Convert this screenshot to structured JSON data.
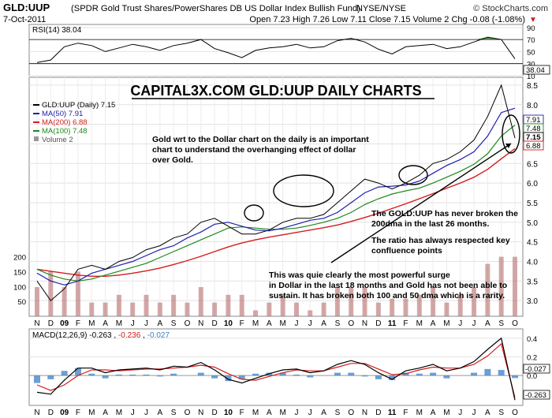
{
  "header": {
    "symbol": "GLD:UUP",
    "description": "(SPDR Gold Trust Shares/PowerShares DB US Dollar Index Bullish Fund)",
    "exchange": "NYSE/NYSE",
    "credit": "© StockCharts.com",
    "date": "7-Oct-2011",
    "quote": "Open 7.23  High 7.26  Low 7.11  Close 7.15  Volume 2  Chg -0.08 (-1.08%)",
    "chg_arrow": "▼"
  },
  "rsi_panel": {
    "label": "RSI(14) 38.04",
    "ticks": [
      "90",
      "70",
      "50",
      "30",
      "10"
    ],
    "last_value_label": "38.04"
  },
  "main_panel": {
    "title": "CAPITAL3X.COM GLD:UUP DAILY CHARTS",
    "legend": [
      {
        "text": "GLD:UUP (Daily) 7.15",
        "color": "#000000"
      },
      {
        "text": "MA(50) 7.91",
        "color": "#1f1fb0"
      },
      {
        "text": "MA(200) 6.88",
        "color": "#d41c1c"
      },
      {
        "text": "MA(100) 7.48",
        "color": "#1c8a1c"
      },
      {
        "text": "Volume 2",
        "color": "#555555"
      }
    ],
    "y_ticks": [
      "8.5",
      "8.0",
      "7.5",
      "7.0",
      "6.5",
      "6.0",
      "5.5",
      "5.0",
      "4.5",
      "4.0",
      "3.5",
      "3.0"
    ],
    "volume_ticks": [
      "200",
      "150",
      "100",
      "50"
    ],
    "last_labels": [
      "7.91",
      "7.48",
      "7.15",
      "6.88"
    ],
    "annotation_1": [
      "Gold wrt to the Dollar chart on the daily is an important",
      "chart to understand the overhanging effect of dollar",
      "over Gold."
    ],
    "annotation_2": [
      "The GOLD:UUP has never broken the",
      "200dma in the last 26 months."
    ],
    "annotation_3": [
      "The ratio has always respected key",
      "confluence points"
    ],
    "annotation_4": [
      "This was quie clearly the most powerful surge",
      "in Dollar in the last 18 months and Gold has not been able to",
      "sustain. It has broken both 100 and 50 dma which is a rarity."
    ]
  },
  "x_axis": [
    "N",
    "D",
    "09",
    "F",
    "M",
    "A",
    "M",
    "J",
    "J",
    "A",
    "S",
    "O",
    "N",
    "D",
    "10",
    "F",
    "M",
    "A",
    "M",
    "J",
    "J",
    "A",
    "S",
    "O",
    "N",
    "D",
    "11",
    "F",
    "M",
    "A",
    "M",
    "J",
    "J",
    "A",
    "S",
    "O"
  ],
  "macd_panel": {
    "label_prefix": "MACD(12,26,9)",
    "macd": "-0.263",
    "signal": "-0.236",
    "hist": "-0.027",
    "ticks": [
      "0.4",
      "0.2",
      "0.0"
    ],
    "last_labels": [
      "-0.027",
      "-0.263"
    ]
  },
  "colors": {
    "price": "#000000",
    "ma50": "#1f1fb0",
    "ma100": "#1c8a1c",
    "ma200": "#d41c1c",
    "volume": "#b06060",
    "rsi_fill_high": "#2f7f2f",
    "macd_hist": "#3b7fc4",
    "macd_signal": "#d41c1c",
    "panel_bg": "#ffffff",
    "grid": "#d8d8d8"
  },
  "chart_data": {
    "type": "line",
    "title": "CAPITAL3X.COM GLD:UUP DAILY CHARTS",
    "x": [
      "2008-11",
      "2008-12",
      "2009-01",
      "2009-02",
      "2009-03",
      "2009-04",
      "2009-05",
      "2009-06",
      "2009-07",
      "2009-08",
      "2009-09",
      "2009-10",
      "2009-11",
      "2009-12",
      "2010-01",
      "2010-02",
      "2010-03",
      "2010-04",
      "2010-05",
      "2010-06",
      "2010-07",
      "2010-08",
      "2010-09",
      "2010-10",
      "2010-11",
      "2010-12",
      "2011-01",
      "2011-02",
      "2011-03",
      "2011-04",
      "2011-05",
      "2011-06",
      "2011-07",
      "2011-08",
      "2011-09",
      "2011-10"
    ],
    "series": [
      {
        "name": "GLD:UUP (Daily)",
        "values": [
          3.5,
          3.0,
          3.3,
          3.8,
          3.9,
          3.8,
          4.0,
          4.1,
          4.3,
          4.4,
          4.6,
          4.7,
          5.0,
          5.1,
          4.9,
          4.7,
          4.7,
          4.8,
          5.0,
          5.1,
          5.1,
          5.2,
          5.5,
          5.8,
          6.1,
          6.0,
          5.85,
          6.0,
          6.2,
          6.5,
          6.6,
          6.8,
          7.1,
          7.7,
          8.5,
          7.15
        ]
      },
      {
        "name": "MA(50)",
        "values": [
          3.7,
          3.5,
          3.4,
          3.5,
          3.7,
          3.8,
          3.9,
          4.0,
          4.15,
          4.3,
          4.4,
          4.6,
          4.75,
          4.95,
          5.0,
          4.9,
          4.8,
          4.78,
          4.85,
          4.95,
          5.05,
          5.1,
          5.25,
          5.5,
          5.75,
          5.9,
          5.92,
          5.95,
          6.05,
          6.25,
          6.45,
          6.6,
          6.8,
          7.2,
          7.8,
          7.91
        ]
      },
      {
        "name": "MA(100)",
        "values": [
          3.8,
          3.65,
          3.55,
          3.5,
          3.55,
          3.65,
          3.75,
          3.85,
          3.95,
          4.1,
          4.25,
          4.4,
          4.55,
          4.7,
          4.85,
          4.88,
          4.85,
          4.82,
          4.82,
          4.85,
          4.92,
          5.0,
          5.1,
          5.25,
          5.45,
          5.6,
          5.72,
          5.8,
          5.87,
          6.0,
          6.15,
          6.3,
          6.48,
          6.75,
          7.2,
          7.48
        ]
      },
      {
        "name": "MA(200)",
        "values": [
          3.8,
          3.75,
          3.7,
          3.65,
          3.62,
          3.62,
          3.65,
          3.7,
          3.76,
          3.83,
          3.92,
          4.02,
          4.13,
          4.25,
          4.37,
          4.47,
          4.55,
          4.62,
          4.68,
          4.74,
          4.8,
          4.86,
          4.93,
          5.02,
          5.12,
          5.23,
          5.35,
          5.47,
          5.6,
          5.73,
          5.87,
          6.0,
          6.15,
          6.35,
          6.62,
          6.88
        ]
      }
    ],
    "ylim": [
      2.6,
      8.7
    ],
    "volume_ylim": [
      0,
      220
    ],
    "rsi": [
      32,
      36,
      58,
      64,
      60,
      50,
      56,
      62,
      58,
      52,
      60,
      64,
      70,
      55,
      48,
      40,
      52,
      56,
      58,
      62,
      56,
      58,
      68,
      72,
      66,
      54,
      46,
      58,
      60,
      62,
      55,
      58,
      66,
      74,
      70,
      38.04
    ],
    "rsi_ylim": [
      10,
      95
    ],
    "macd": [
      -0.18,
      -0.2,
      -0.05,
      0.08,
      0.08,
      0.03,
      0.06,
      0.07,
      0.08,
      0.06,
      0.1,
      0.09,
      0.14,
      0.06,
      -0.04,
      -0.08,
      -0.03,
      0.02,
      0.06,
      0.07,
      0.03,
      0.05,
      0.12,
      0.16,
      0.12,
      0.03,
      -0.04,
      0.05,
      0.08,
      0.12,
      0.05,
      0.08,
      0.15,
      0.28,
      0.4,
      -0.263
    ],
    "macd_signal": [
      -0.1,
      -0.16,
      -0.1,
      0.0,
      0.06,
      0.06,
      0.05,
      0.06,
      0.07,
      0.07,
      0.08,
      0.09,
      0.11,
      0.09,
      0.02,
      -0.04,
      -0.05,
      -0.01,
      0.03,
      0.06,
      0.05,
      0.05,
      0.09,
      0.13,
      0.13,
      0.07,
      0.01,
      0.02,
      0.06,
      0.09,
      0.08,
      0.08,
      0.12,
      0.21,
      0.34,
      -0.236
    ],
    "macd_ylim": [
      -0.32,
      0.5
    ]
  }
}
